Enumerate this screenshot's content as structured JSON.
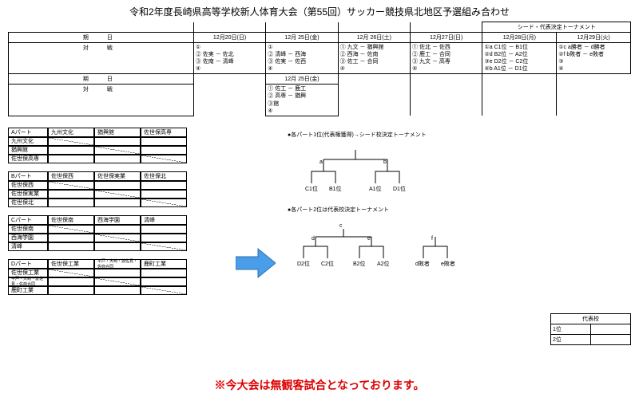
{
  "title": "令和2年度長崎県高等学校新人体育大会（第55回）サッカー競技県北地区予選組み合わせ",
  "schedule": {
    "seed_header": "シード・代表決定トーナメント",
    "row1_label": "期　日",
    "row2_label": "対　戦",
    "dates": [
      "12月20日(日)",
      "12月 25日(金)",
      "12月 26日(土)",
      "12月27日(日)",
      "12月28日(月)",
      "12月29日(火)"
    ],
    "matches1": [
      "①\n② 佐実 － 佐北\n③ 佐南 － 清峰\n④",
      "①\n② 清峰 － 西海\n③ 佐実 － 佐西\n④",
      "① 九文 － 猶興館\n② 西海 － 佐南\n③ 佐工 － 合同\n④",
      "① 佐北 － 佐西\n② 鹿工 － 合同\n③ 九文 － 高専\n④",
      "①a C1位 － B1位\n②d B2位 － A2位\n③e D2位 － C2位\n④b A1位 － D1位",
      "①c a勝者 － d勝者\n②f b敗者 － e敗者\n③\n④"
    ],
    "row3_date": "12月 25日(金)",
    "matches2": "① 佐工 － 鹿工\n② 高専 － 猶興\n③館\n④"
  },
  "parts": [
    {
      "name": "Aパート",
      "teams": [
        "九州文化",
        "猶興館",
        "佐世保高専"
      ],
      "rows": [
        "九州文化",
        "猶興館",
        "佐世保高専"
      ]
    },
    {
      "name": "Bパート",
      "teams": [
        "佐世保西",
        "佐世保実業",
        "佐世保北"
      ],
      "rows": [
        "佐世保西",
        "佐世保実業",
        "佐世保北"
      ]
    },
    {
      "name": "Cパート",
      "teams": [
        "佐世保南",
        "西海学園",
        "清峰"
      ],
      "rows": [
        "佐世保南",
        "西海学園",
        "清峰"
      ]
    },
    {
      "name": "Dパート",
      "teams": [
        "佐世保工業",
        "",
        "鹿町工業"
      ],
      "team2_small": "平戸・大崎・波佐見・佐商合同",
      "rows": [
        "佐世保工業",
        "",
        "鹿町工業"
      ],
      "row2_small": "平戸・大崎・波佐見・佐商合同"
    }
  ],
  "bracket1": {
    "title": "●各パート1位(代表権獲得)→シード校決定トーナメント",
    "labels": {
      "a": "a",
      "b": "b",
      "leaves": [
        "C1位",
        "B1位",
        "A1位",
        "D1位"
      ]
    }
  },
  "bracket2": {
    "title": "●各パート2位は代表校決定トーナメント",
    "labels": {
      "d": "d",
      "e": "e",
      "c": "c",
      "f": "f",
      "leaves": [
        "D2位",
        "C2位",
        "B2位",
        "A2位",
        "d敗者",
        "e敗者"
      ]
    }
  },
  "rep": {
    "header": "代表校",
    "rows": [
      "1位",
      "2位"
    ]
  },
  "notice": "※今大会は無観客試合となっております。"
}
